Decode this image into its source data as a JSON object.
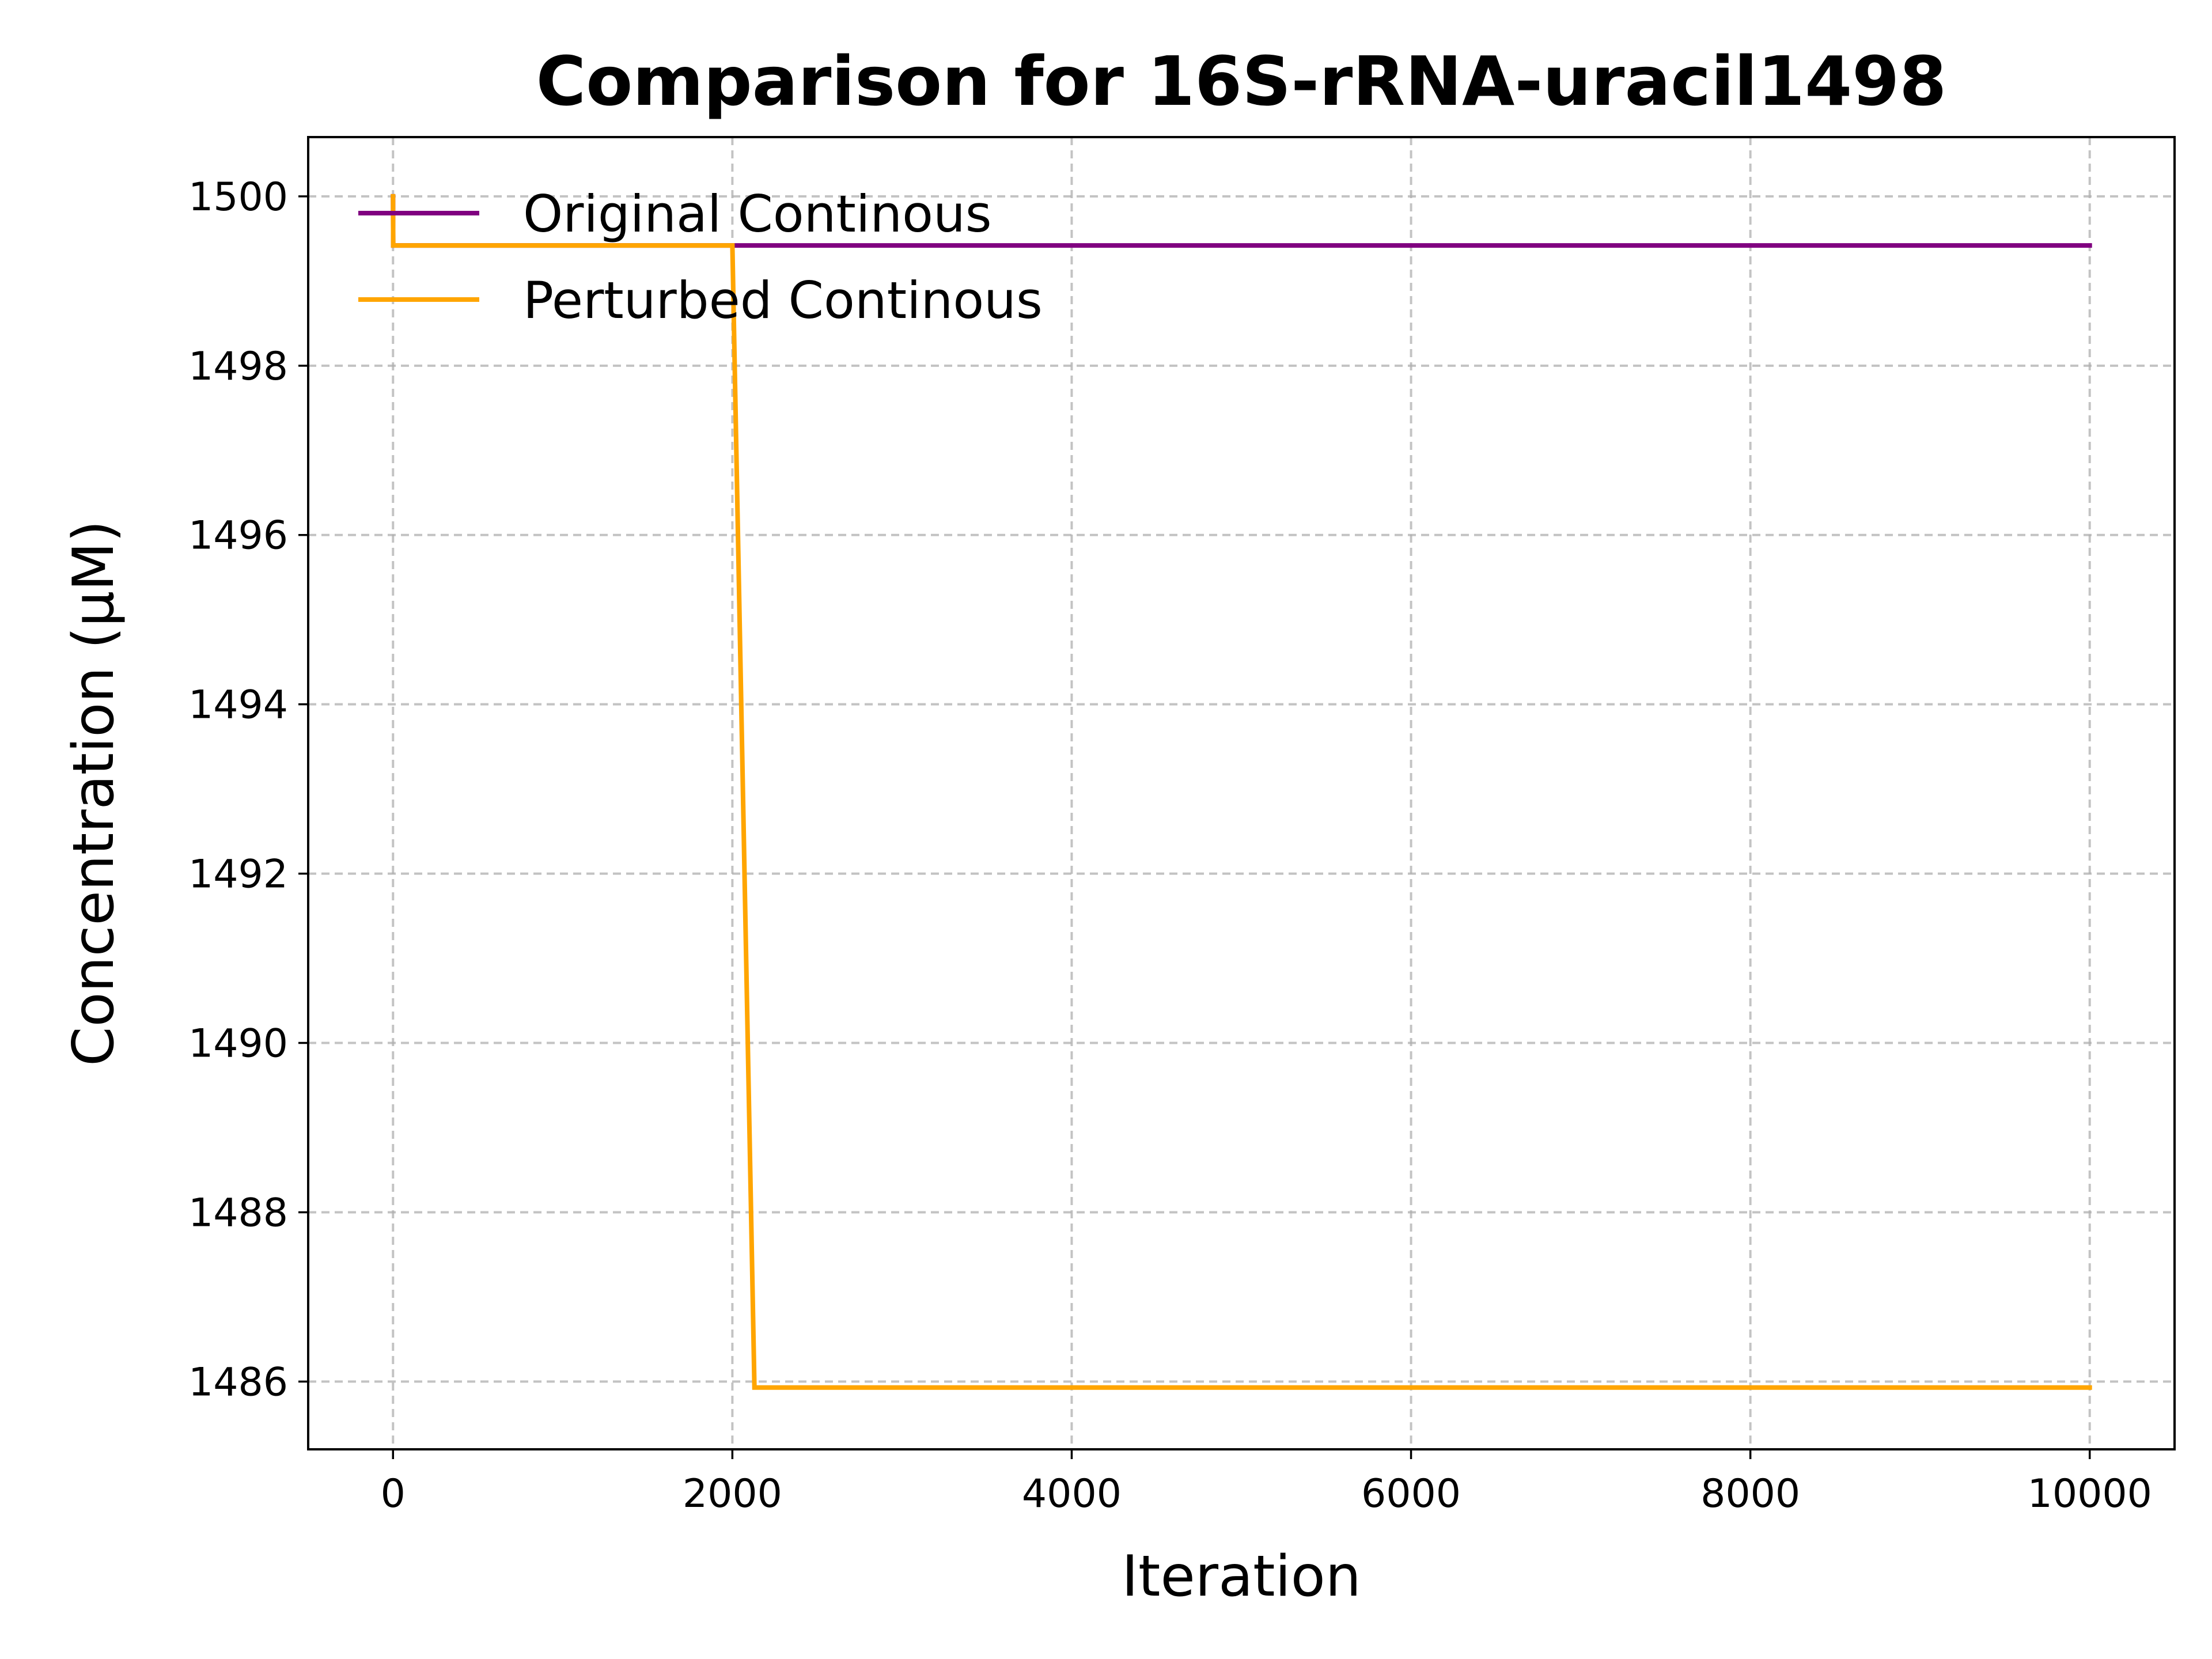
{
  "chart_data": {
    "type": "line",
    "title": "Comparison for 16S-rRNA-uracil1498",
    "xlabel": "Iteration",
    "ylabel": "Concentration (μM)",
    "xlim": [
      -500,
      10500
    ],
    "ylim": [
      1485.2,
      1500.7
    ],
    "xticks": [
      0,
      2000,
      4000,
      6000,
      8000,
      10000
    ],
    "yticks": [
      1486,
      1488,
      1490,
      1492,
      1494,
      1496,
      1498,
      1500
    ],
    "grid": true,
    "legend_position": "upper-left",
    "series": [
      {
        "name": "Original Continous",
        "color": "#800080",
        "points": [
          [
            0,
            1500.0
          ],
          [
            1,
            1499.42
          ],
          [
            10000,
            1499.42
          ]
        ]
      },
      {
        "name": "Perturbed Continous",
        "color": "#FFA500",
        "points": [
          [
            0,
            1500.0
          ],
          [
            1,
            1499.42
          ],
          [
            2000,
            1499.42
          ],
          [
            2130,
            1485.93
          ],
          [
            10000,
            1485.93
          ]
        ]
      }
    ]
  }
}
